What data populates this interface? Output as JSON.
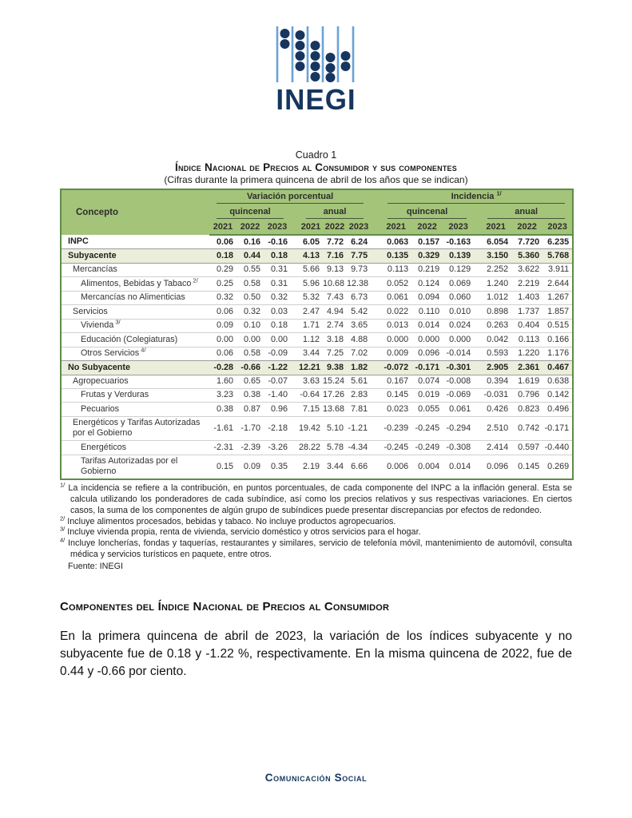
{
  "logo": {
    "text": "INEGI"
  },
  "table": {
    "caption": "Cuadro 1",
    "title": "Índice Nacional de Precios al Consumidor y sus componentes",
    "subtitle": "(Cifras durante la primera quincena de abril de los años que se indican)",
    "header": {
      "concept": "Concepto",
      "group1": "Variación porcentual",
      "group2": "Incidencia",
      "group2_marker": "1/",
      "sub": [
        "quincenal",
        "anual",
        "quincenal",
        "anual"
      ],
      "years": [
        "2021",
        "2022",
        "2023"
      ]
    },
    "rows": [
      {
        "label": "INPC",
        "style": "bold",
        "indent": 0,
        "marker": "",
        "values": [
          "0.06",
          "0.16",
          "-0.16",
          "6.05",
          "7.72",
          "6.24",
          "0.063",
          "0.157",
          "-0.163",
          "6.054",
          "7.720",
          "6.235"
        ]
      },
      {
        "label": "Subyacente",
        "style": "section",
        "indent": 0,
        "marker": "",
        "values": [
          "0.18",
          "0.44",
          "0.18",
          "4.13",
          "7.16",
          "7.75",
          "0.135",
          "0.329",
          "0.139",
          "3.150",
          "5.360",
          "5.768"
        ]
      },
      {
        "label": "Mercancías",
        "style": "normal",
        "indent": 1,
        "marker": "",
        "values": [
          "0.29",
          "0.55",
          "0.31",
          "5.66",
          "9.13",
          "9.73",
          "0.113",
          "0.219",
          "0.129",
          "2.252",
          "3.622",
          "3.911"
        ]
      },
      {
        "label": "Alimentos, Bebidas y Tabaco",
        "style": "normal",
        "indent": 2,
        "marker": "2/",
        "values": [
          "0.25",
          "0.58",
          "0.31",
          "5.96",
          "10.68",
          "12.38",
          "0.052",
          "0.124",
          "0.069",
          "1.240",
          "2.219",
          "2.644"
        ]
      },
      {
        "label": "Mercancías no Alimenticias",
        "style": "normal",
        "indent": 2,
        "marker": "",
        "values": [
          "0.32",
          "0.50",
          "0.32",
          "5.32",
          "7.43",
          "6.73",
          "0.061",
          "0.094",
          "0.060",
          "1.012",
          "1.403",
          "1.267"
        ]
      },
      {
        "label": "Servicios",
        "style": "normal",
        "indent": 1,
        "marker": "",
        "values": [
          "0.06",
          "0.32",
          "0.03",
          "2.47",
          "4.94",
          "5.42",
          "0.022",
          "0.110",
          "0.010",
          "0.898",
          "1.737",
          "1.857"
        ]
      },
      {
        "label": "Vivienda",
        "style": "normal",
        "indent": 2,
        "marker": "3/",
        "values": [
          "0.09",
          "0.10",
          "0.18",
          "1.71",
          "2.74",
          "3.65",
          "0.013",
          "0.014",
          "0.024",
          "0.263",
          "0.404",
          "0.515"
        ]
      },
      {
        "label": "Educación (Colegiaturas)",
        "style": "normal",
        "indent": 2,
        "marker": "",
        "values": [
          "0.00",
          "0.00",
          "0.00",
          "1.12",
          "3.18",
          "4.88",
          "0.000",
          "0.000",
          "0.000",
          "0.042",
          "0.113",
          "0.166"
        ]
      },
      {
        "label": "Otros Servicios",
        "style": "normal",
        "indent": 2,
        "marker": "4/",
        "values": [
          "0.06",
          "0.58",
          "-0.09",
          "3.44",
          "7.25",
          "7.02",
          "0.009",
          "0.096",
          "-0.014",
          "0.593",
          "1.220",
          "1.176"
        ]
      },
      {
        "label": "No Subyacente",
        "style": "section",
        "indent": 0,
        "marker": "",
        "values": [
          "-0.28",
          "-0.66",
          "-1.22",
          "12.21",
          "9.38",
          "1.82",
          "-0.072",
          "-0.171",
          "-0.301",
          "2.905",
          "2.361",
          "0.467"
        ]
      },
      {
        "label": "Agropecuarios",
        "style": "normal",
        "indent": 1,
        "marker": "",
        "values": [
          "1.60",
          "0.65",
          "-0.07",
          "3.63",
          "15.24",
          "5.61",
          "0.167",
          "0.074",
          "-0.008",
          "0.394",
          "1.619",
          "0.638"
        ]
      },
      {
        "label": "Frutas y Verduras",
        "style": "normal",
        "indent": 2,
        "marker": "",
        "values": [
          "3.23",
          "0.38",
          "-1.40",
          "-0.64",
          "17.26",
          "2.83",
          "0.145",
          "0.019",
          "-0.069",
          "-0.031",
          "0.796",
          "0.142"
        ]
      },
      {
        "label": "Pecuarios",
        "style": "normal",
        "indent": 2,
        "marker": "",
        "values": [
          "0.38",
          "0.87",
          "0.96",
          "7.15",
          "13.68",
          "7.81",
          "0.023",
          "0.055",
          "0.061",
          "0.426",
          "0.823",
          "0.496"
        ]
      },
      {
        "label": "Energéticos y Tarifas Autorizadas por el Gobierno",
        "style": "normal",
        "indent": 1,
        "marker": "",
        "values": [
          "-1.61",
          "-1.70",
          "-2.18",
          "19.42",
          "5.10",
          "-1.21",
          "-0.239",
          "-0.245",
          "-0.294",
          "2.510",
          "0.742",
          "-0.171"
        ]
      },
      {
        "label": "Energéticos",
        "style": "normal",
        "indent": 2,
        "marker": "",
        "values": [
          "-2.31",
          "-2.39",
          "-3.26",
          "28.22",
          "5.78",
          "-4.34",
          "-0.245",
          "-0.249",
          "-0.308",
          "2.414",
          "0.597",
          "-0.440"
        ]
      },
      {
        "label": "Tarifas Autorizadas por el Gobierno",
        "style": "normal",
        "indent": 2,
        "marker": "",
        "values": [
          "0.15",
          "0.09",
          "0.35",
          "2.19",
          "3.44",
          "6.66",
          "0.006",
          "0.004",
          "0.014",
          "0.096",
          "0.145",
          "0.269"
        ]
      }
    ]
  },
  "footnotes": [
    {
      "marker": "1/",
      "text": "La incidencia se refiere a la contribución, en puntos porcentuales, de cada componente del INPC a la inflación general. Esta se calcula utilizando los ponderadores de cada subíndice, así como los precios relativos y sus respectivas variaciones. En ciertos casos, la suma de los componentes de algún grupo de subíndices puede presentar discrepancias por efectos de redondeo."
    },
    {
      "marker": "2/",
      "text": "Incluye alimentos procesados, bebidas y tabaco. No incluye productos agropecuarios."
    },
    {
      "marker": "3/",
      "text": "Incluye vivienda propia, renta de vivienda, servicio doméstico y otros servicios para el hogar."
    },
    {
      "marker": "4/",
      "text": "Incluye loncherías, fondas y taquerías, restaurantes y similares, servicio de telefonía móvil, mantenimiento de automóvil, consulta médica y servicios turísticos en paquete, entre otros."
    }
  ],
  "source": "Fuente: INEGI",
  "section": {
    "heading": "Componentes del Índice Nacional de Precios al Consumidor",
    "paragraph": "En la primera quincena de abril de 2023, la variación de los índices subyacente y no subyacente fue de 0.18 y -1.22 %, respectivamente. En la misma quincena de 2022, fue de 0.44 y -0.66 por ciento."
  },
  "footer": {
    "text": "Comunicación Social"
  },
  "colors": {
    "header_green": "#a4c479",
    "table_border_green": "#5e8c48",
    "section_row_green": "#eaeeda",
    "brand_navy": "#16365f",
    "abacus_rod_blue": "#6aa2d8"
  }
}
